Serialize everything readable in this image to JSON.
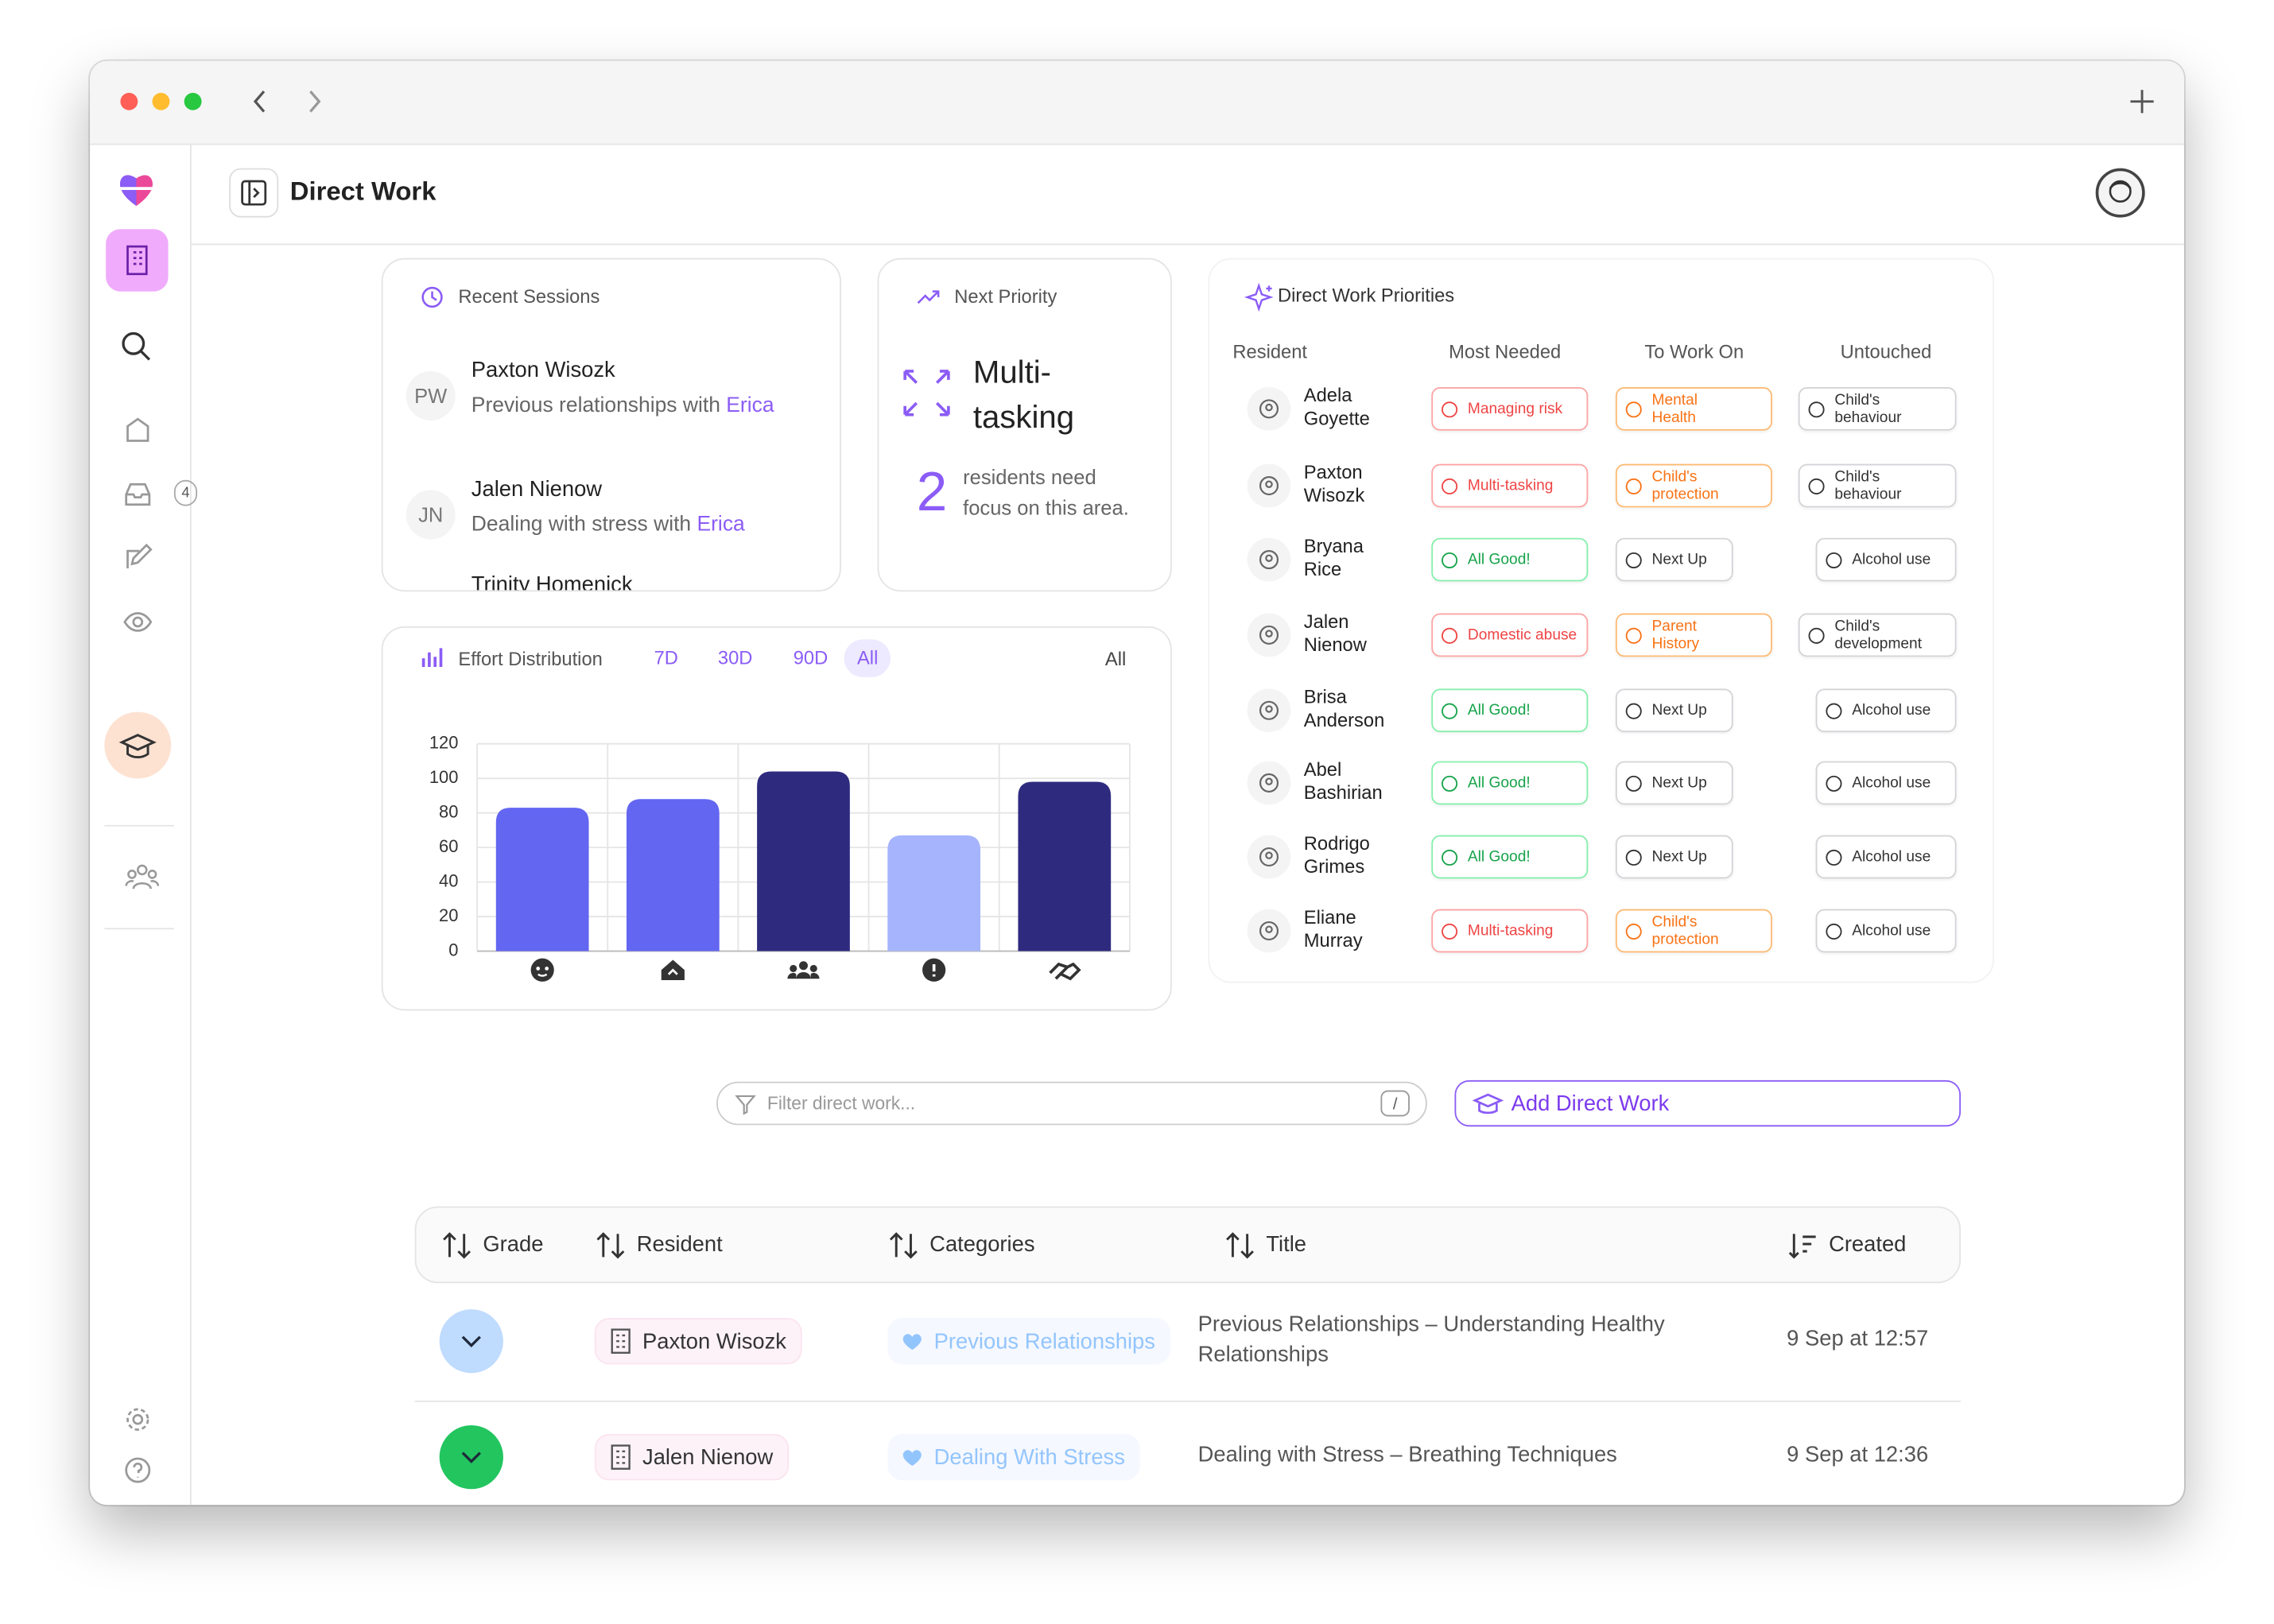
{
  "header": {
    "title": "Direct Work"
  },
  "sidebar": {
    "inbox_badge": 4
  },
  "recent_sessions": {
    "title": "Recent Sessions",
    "items": [
      {
        "initials": "PW",
        "name": "Paxton Wisozk",
        "text": "Previous relationships with",
        "staff": "Erica"
      },
      {
        "initials": "JN",
        "name": "Jalen Nienow",
        "text": "Dealing with stress with",
        "staff": "Erica"
      },
      {
        "name": "Trinity Homenick"
      }
    ]
  },
  "next_priority": {
    "title": "Next Priority",
    "focus": "Multi-tasking",
    "count": 2,
    "text": "residents need focus on this area."
  },
  "effort": {
    "title": "Effort Distribution",
    "ranges": [
      "7D",
      "30D",
      "90D",
      "All"
    ],
    "selected_range": 3,
    "filter": "All"
  },
  "chart_data": {
    "type": "bar",
    "categories": [
      null,
      null,
      null,
      null,
      null
    ],
    "values": [
      83,
      88,
      104,
      67,
      98
    ],
    "colors": [
      "#6366f1",
      "#6366f1",
      "#2e2b7f",
      "#a5b4fc",
      "#2e2b7f"
    ],
    "ylim": [
      0,
      120
    ],
    "yticks": [
      0,
      20,
      40,
      60,
      80,
      100,
      120
    ],
    "grid": true
  },
  "priorities": {
    "title": "Direct Work Priorities",
    "columns": [
      "Resident",
      "Most Needed",
      "To Work On",
      "Untouched"
    ],
    "rows": [
      {
        "name": "Adela Goyette",
        "most_needed": {
          "label": "Managing risk",
          "tone": "red"
        },
        "to_work_on": {
          "label": "Mental Health",
          "tone": "orange"
        },
        "untouched": {
          "label": "Child's behaviour",
          "tone": "gray"
        }
      },
      {
        "name": "Paxton Wisozk",
        "most_needed": {
          "label": "Multi-tasking",
          "tone": "red"
        },
        "to_work_on": {
          "label": "Child's protection",
          "tone": "orange"
        },
        "untouched": {
          "label": "Child's behaviour",
          "tone": "gray"
        }
      },
      {
        "name": "Bryana Rice",
        "most_needed": {
          "label": "All Good!",
          "tone": "green"
        },
        "to_work_on": {
          "label": "Next Up",
          "tone": "gray"
        },
        "untouched": {
          "label": "Alcohol use",
          "tone": "gray"
        }
      },
      {
        "name": "Jalen Nienow",
        "most_needed": {
          "label": "Domestic abuse",
          "tone": "red"
        },
        "to_work_on": {
          "label": "Parent History",
          "tone": "orange"
        },
        "untouched": {
          "label": "Child's development",
          "tone": "gray"
        }
      },
      {
        "name": "Brisa Anderson",
        "most_needed": {
          "label": "All Good!",
          "tone": "green"
        },
        "to_work_on": {
          "label": "Next Up",
          "tone": "gray"
        },
        "untouched": {
          "label": "Alcohol use",
          "tone": "gray"
        }
      },
      {
        "name": "Abel Bashirian",
        "most_needed": {
          "label": "All Good!",
          "tone": "green"
        },
        "to_work_on": {
          "label": "Next Up",
          "tone": "gray"
        },
        "untouched": {
          "label": "Alcohol use",
          "tone": "gray"
        }
      },
      {
        "name": "Rodrigo Grimes",
        "most_needed": {
          "label": "All Good!",
          "tone": "green"
        },
        "to_work_on": {
          "label": "Next Up",
          "tone": "gray"
        },
        "untouched": {
          "label": "Alcohol use",
          "tone": "gray"
        }
      },
      {
        "name": "Eliane Murray",
        "most_needed": {
          "label": "Multi-tasking",
          "tone": "red"
        },
        "to_work_on": {
          "label": "Child's protection",
          "tone": "orange"
        },
        "untouched": {
          "label": "Alcohol use",
          "tone": "gray"
        }
      }
    ]
  },
  "filter": {
    "placeholder": "Filter direct work...",
    "shortcut": "/"
  },
  "add_button": "Add Direct Work",
  "table": {
    "columns": [
      "Grade",
      "Resident",
      "Categories",
      "Title",
      "Created"
    ],
    "rows": [
      {
        "grade_color": "#bfdbfe",
        "resident": "Paxton Wisozk",
        "category": "Previous Relationships",
        "title": "Previous Relationships – Understanding Healthy Relationships",
        "created": "9 Sep at 12:57"
      },
      {
        "grade_color": "#22c55e",
        "resident": "Jalen Nienow",
        "category": "Dealing With Stress",
        "title": "Dealing with Stress – Breathing Techniques",
        "created": "9 Sep at 12:36"
      }
    ]
  }
}
